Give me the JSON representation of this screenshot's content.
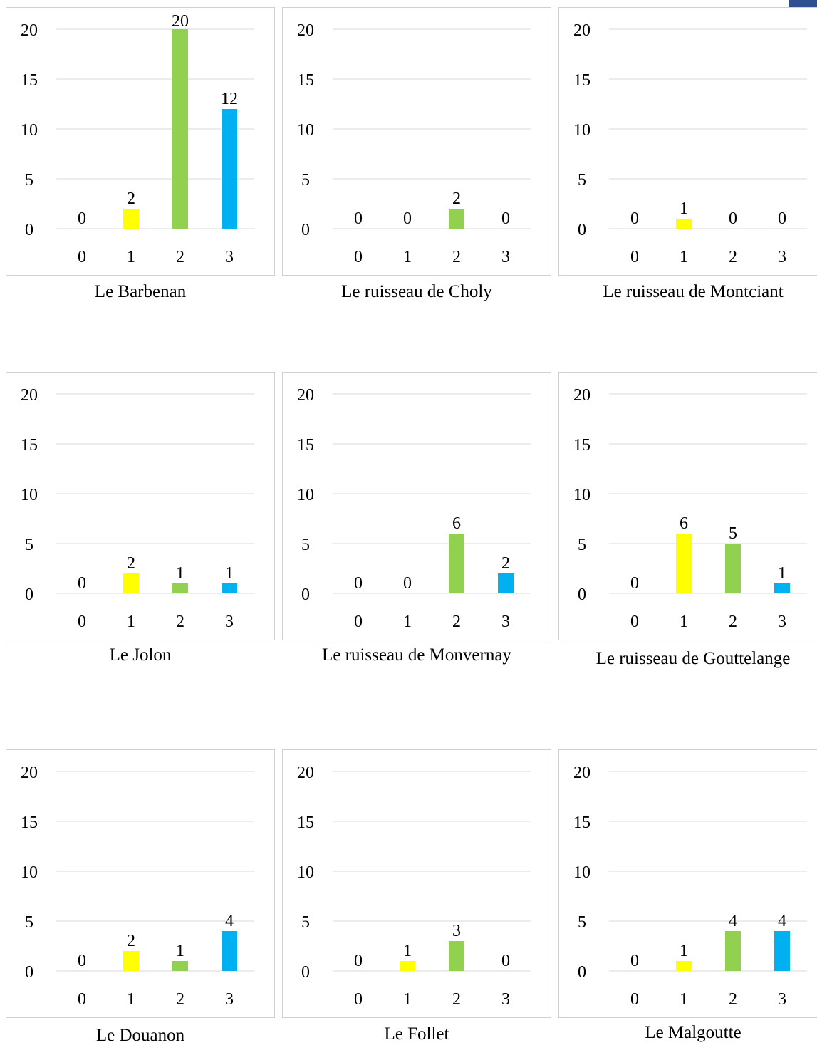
{
  "colors": {
    "grid": "#d9d9d9",
    "categories": [
      "#ffff00",
      "#ffff00",
      "#92d050",
      "#00b0f0"
    ]
  },
  "chart_data": [
    {
      "type": "bar",
      "title": "Le Barbenan",
      "categories": [
        "0",
        "1",
        "2",
        "3"
      ],
      "values": [
        0,
        2,
        20,
        12
      ],
      "yticks": [
        "0",
        "5",
        "10",
        "15",
        "20"
      ],
      "ylim": [
        0,
        20
      ],
      "grid": true
    },
    {
      "type": "bar",
      "title": "Le ruisseau de Choly",
      "categories": [
        "0",
        "1",
        "2",
        "3"
      ],
      "values": [
        0,
        0,
        2,
        0
      ],
      "yticks": [
        "0",
        "5",
        "10",
        "15",
        "20"
      ],
      "ylim": [
        0,
        20
      ],
      "grid": true
    },
    {
      "type": "bar",
      "title": "Le ruisseau de Montciant",
      "categories": [
        "0",
        "1",
        "2",
        "3"
      ],
      "values": [
        0,
        1,
        0,
        0
      ],
      "yticks": [
        "0",
        "5",
        "10",
        "15",
        "20"
      ],
      "ylim": [
        0,
        20
      ],
      "grid": true
    },
    {
      "type": "bar",
      "title": "Le Jolon",
      "categories": [
        "0",
        "1",
        "2",
        "3"
      ],
      "values": [
        0,
        2,
        1,
        1
      ],
      "yticks": [
        "0",
        "5",
        "10",
        "15",
        "20"
      ],
      "ylim": [
        0,
        20
      ],
      "grid": true
    },
    {
      "type": "bar",
      "title": "Le ruisseau de Monvernay",
      "categories": [
        "0",
        "1",
        "2",
        "3"
      ],
      "values": [
        0,
        0,
        6,
        2
      ],
      "yticks": [
        "0",
        "5",
        "10",
        "15",
        "20"
      ],
      "ylim": [
        0,
        20
      ],
      "grid": true
    },
    {
      "type": "bar",
      "title": "Le ruisseau de Gouttelange",
      "categories": [
        "0",
        "1",
        "2",
        "3"
      ],
      "values": [
        0,
        6,
        5,
        1
      ],
      "yticks": [
        "0",
        "5",
        "10",
        "15",
        "20"
      ],
      "ylim": [
        0,
        20
      ],
      "grid": true
    },
    {
      "type": "bar",
      "title": "Le Douanon",
      "categories": [
        "0",
        "1",
        "2",
        "3"
      ],
      "values": [
        0,
        2,
        1,
        4
      ],
      "yticks": [
        "0",
        "5",
        "10",
        "15",
        "20"
      ],
      "ylim": [
        0,
        20
      ],
      "grid": true
    },
    {
      "type": "bar",
      "title": "Le Follet",
      "categories": [
        "0",
        "1",
        "2",
        "3"
      ],
      "values": [
        0,
        1,
        3,
        0
      ],
      "yticks": [
        "0",
        "5",
        "10",
        "15",
        "20"
      ],
      "ylim": [
        0,
        20
      ],
      "grid": true
    },
    {
      "type": "bar",
      "title": "Le Malgoutte",
      "categories": [
        "0",
        "1",
        "2",
        "3"
      ],
      "values": [
        0,
        1,
        4,
        4
      ],
      "yticks": [
        "0",
        "5",
        "10",
        "15",
        "20"
      ],
      "ylim": [
        0,
        20
      ],
      "grid": true
    }
  ]
}
